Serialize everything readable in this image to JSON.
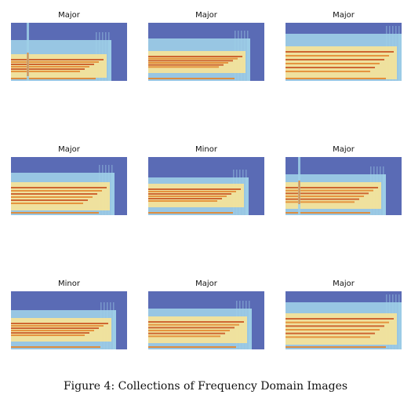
{
  "figure": {
    "caption": "Figure 4:  Collections of Frequency Domain Images",
    "colors": {
      "background": "#5a6bb5",
      "low": "#9fd0e8",
      "mid": "#f3e39a",
      "high": "#e3862e",
      "peak": "#c8501e"
    },
    "panels": [
      {
        "label": "Major",
        "style": 0
      },
      {
        "label": "Major",
        "style": 1
      },
      {
        "label": "Major",
        "style": 2
      },
      {
        "label": "Major",
        "style": 3
      },
      {
        "label": "Minor",
        "style": 4
      },
      {
        "label": "Major",
        "style": 5
      },
      {
        "label": "Minor",
        "style": 6
      },
      {
        "label": "Major",
        "style": 7
      },
      {
        "label": "Major",
        "style": 8
      }
    ]
  }
}
